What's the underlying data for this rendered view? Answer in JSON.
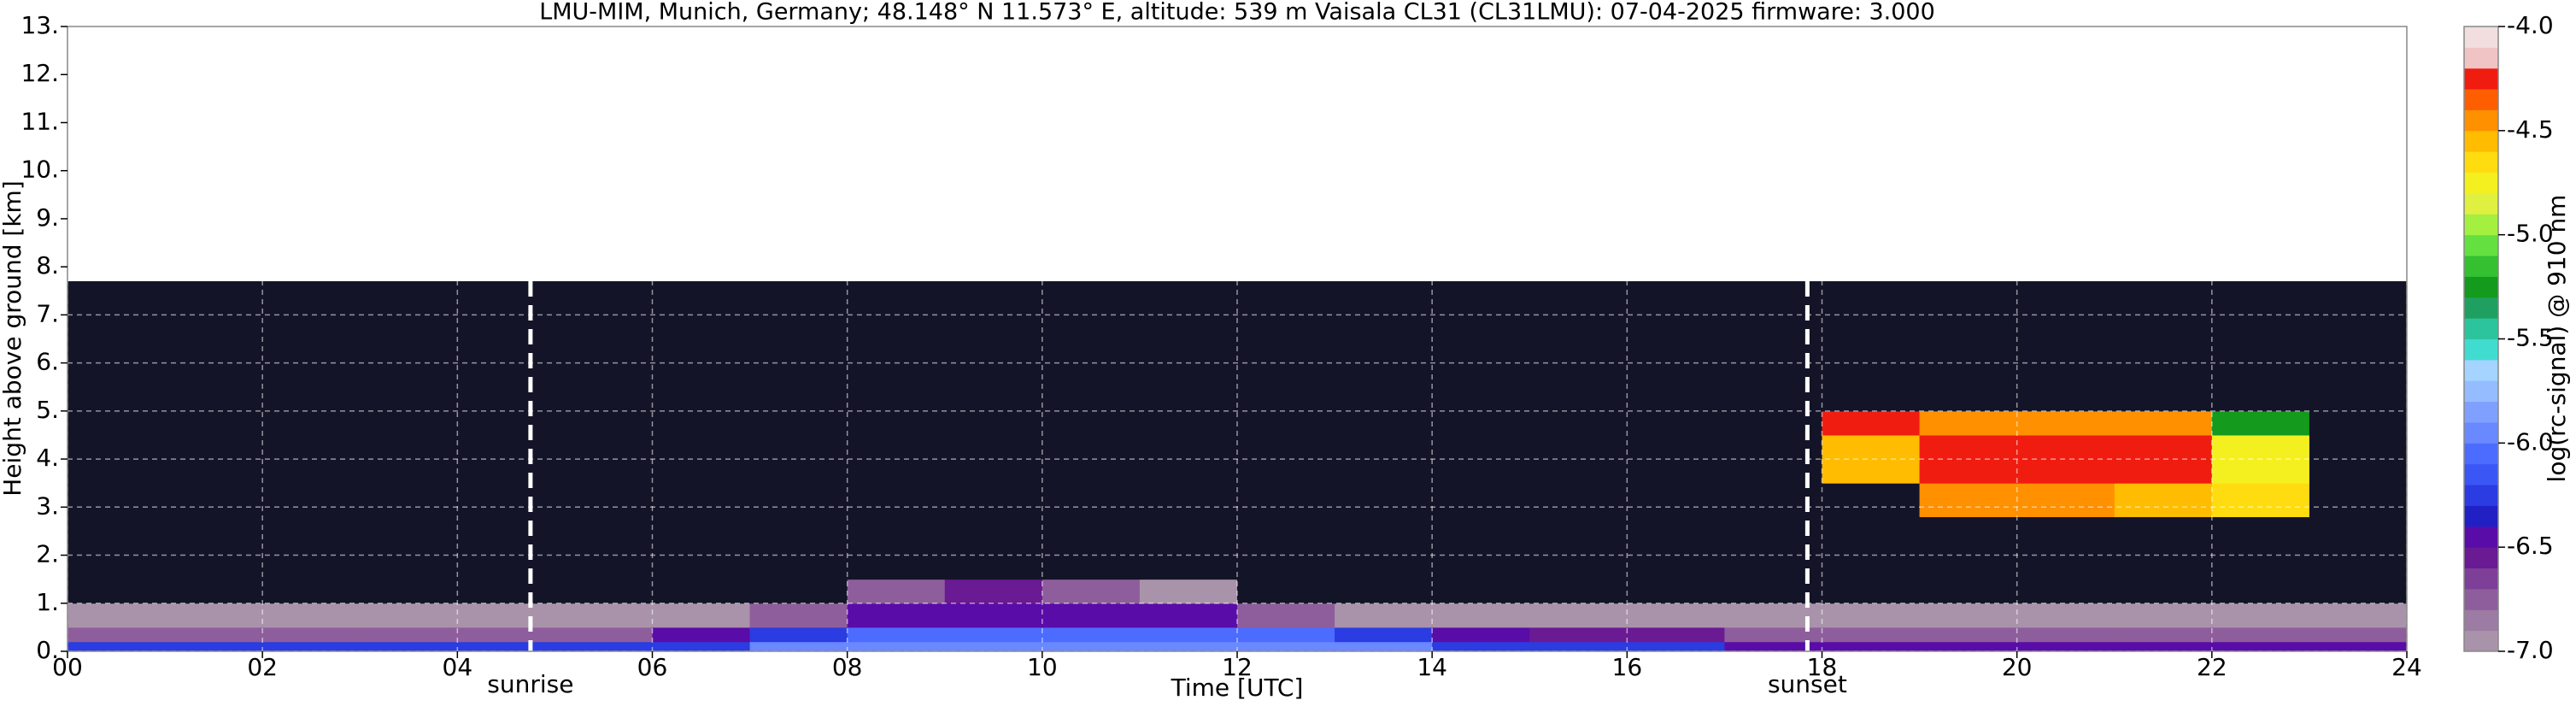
{
  "chart_data": {
    "type": "heatmap",
    "title": "LMU-MIM, Munich, Germany; 48.148° N 11.573° E, altitude: 539 m    Vaisala CL31 (CL31LMU): 07-04-2025    firmware: 3.000",
    "xlabel": "Time [UTC]",
    "ylabel": "Height above ground [km]",
    "colorbar_label": "log(rc-signal) @ 910 nm",
    "xlim": [
      0,
      24
    ],
    "xticks": [
      {
        "value": 0,
        "label": "00"
      },
      {
        "value": 2,
        "label": "02"
      },
      {
        "value": 4,
        "label": "04"
      },
      {
        "value": 6,
        "label": "06"
      },
      {
        "value": 8,
        "label": "08"
      },
      {
        "value": 10,
        "label": "10"
      },
      {
        "value": 12,
        "label": "12"
      },
      {
        "value": 14,
        "label": "14"
      },
      {
        "value": 16,
        "label": "16"
      },
      {
        "value": 18,
        "label": "18"
      },
      {
        "value": 20,
        "label": "20"
      },
      {
        "value": 22,
        "label": "22"
      },
      {
        "value": 24,
        "label": "24"
      }
    ],
    "ylim": [
      0,
      13
    ],
    "yticks": [
      {
        "value": 0,
        "label": "0."
      },
      {
        "value": 1,
        "label": "1."
      },
      {
        "value": 2,
        "label": "2."
      },
      {
        "value": 3,
        "label": "3."
      },
      {
        "value": 4,
        "label": "4."
      },
      {
        "value": 5,
        "label": "5."
      },
      {
        "value": 6,
        "label": "6."
      },
      {
        "value": 7,
        "label": "7."
      },
      {
        "value": 8,
        "label": "8."
      },
      {
        "value": 9,
        "label": "9."
      },
      {
        "value": 10,
        "label": "10."
      },
      {
        "value": 11,
        "label": "11."
      },
      {
        "value": 12,
        "label": "12."
      },
      {
        "value": 13,
        "label": "13."
      }
    ],
    "clim": [
      -7,
      -4
    ],
    "cticks": [
      {
        "value": -7,
        "label": "-7.0"
      },
      -6.5,
      {
        "value": -6,
        "label": "-6.0"
      },
      -5.5,
      {
        "value": -5,
        "label": "-5.0"
      },
      -4.5,
      {
        "value": -4,
        "label": "-4.0"
      }
    ],
    "colormap": [
      "#a993aa",
      "#9c7ca2",
      "#8e5e9c",
      "#7e3f98",
      "#6a1a92",
      "#5a0ca8",
      "#2020c4",
      "#2a3ce2",
      "#3a56f4",
      "#4c6cff",
      "#6a88ff",
      "#80a0ff",
      "#94bcff",
      "#a4d4ff",
      "#40dcd0",
      "#2cc49c",
      "#20a060",
      "#149a1c",
      "#34c030",
      "#64e040",
      "#a4f040",
      "#e0f040",
      "#f4f020",
      "#ffdc10",
      "#ffbc00",
      "#ff9000",
      "#ff5e00",
      "#f01c10",
      "#f0c4c4",
      "#f2dede"
    ],
    "under_color": "#141428",
    "grid": true,
    "xbins": [
      0,
      1,
      2,
      3,
      4,
      5,
      6,
      7,
      8,
      9,
      10,
      11,
      12,
      13,
      14,
      15,
      16,
      17,
      18,
      19,
      20,
      21,
      22,
      23,
      24
    ],
    "ybins": [
      0,
      0.2,
      0.5,
      1,
      1.5,
      2.8,
      3.5,
      4.5,
      5,
      7.7
    ],
    "values": [
      [
        -6.3,
        -6.3,
        -6.3,
        -6.3,
        -6.3,
        -6.3,
        -6.2,
        -6.0,
        -6.0,
        -6.0,
        -6.0,
        -6.0,
        -6.0,
        -6.0,
        -6.2,
        -6.2,
        -6.2,
        -6.4,
        -6.4,
        -6.4,
        -6.4,
        -6.4,
        -6.4,
        -6.4
      ],
      [
        -6.7,
        -6.7,
        -6.7,
        -6.7,
        -6.7,
        -6.7,
        -6.5,
        -6.3,
        -6.1,
        -6.1,
        -6.1,
        -6.1,
        -6.1,
        -6.2,
        -6.5,
        -6.6,
        -6.6,
        -6.7,
        -6.7,
        -6.7,
        -6.7,
        -6.7,
        -6.7,
        -6.7
      ],
      [
        -6.9,
        -6.9,
        -6.9,
        -6.9,
        -6.9,
        -6.9,
        -6.9,
        -6.7,
        -6.5,
        -6.4,
        -6.4,
        -6.5,
        -6.7,
        -6.9,
        -6.9,
        -6.9,
        -6.9,
        -6.9,
        -6.9,
        -6.9,
        -6.9,
        -6.9,
        -6.9,
        -6.9
      ],
      [
        -7.2,
        -7.2,
        -7.2,
        -7.2,
        -7.2,
        -7.2,
        -7.2,
        -7.2,
        -6.8,
        -6.6,
        -6.7,
        -6.9,
        -7.2,
        -7.2,
        -7.2,
        -7.2,
        -7.2,
        -7.2,
        -7.2,
        -7.2,
        -7.2,
        -7.2,
        -7.2,
        -7.2
      ],
      [
        -7.2,
        -7.2,
        -7.2,
        -7.2,
        -7.2,
        -7.2,
        -7.2,
        -7.2,
        -7.2,
        -7.2,
        -7.2,
        -7.2,
        -7.2,
        -7.2,
        -7.2,
        -7.2,
        -7.2,
        -7.2,
        -7.2,
        -7.2,
        -7.2,
        -7.2,
        -7.2,
        -7.2
      ],
      [
        -7.2,
        -7.2,
        -7.2,
        -7.2,
        -7.2,
        -7.2,
        -7.2,
        -7.2,
        -7.2,
        -7.2,
        -7.2,
        -7.2,
        -7.2,
        -7.2,
        -7.2,
        -7.2,
        -7.2,
        -7.2,
        -7.2,
        -4.4,
        -4.4,
        -4.6,
        -4.7,
        -7.2
      ],
      [
        -7.2,
        -7.2,
        -7.2,
        -7.2,
        -7.2,
        -7.2,
        -7.2,
        -7.2,
        -7.2,
        -7.2,
        -7.2,
        -7.2,
        -7.2,
        -7.2,
        -7.2,
        -7.2,
        -7.2,
        -7.2,
        -4.6,
        -4.3,
        -4.3,
        -4.3,
        -4.8,
        -7.2
      ],
      [
        -7.2,
        -7.2,
        -7.2,
        -7.2,
        -7.2,
        -7.2,
        -7.2,
        -7.2,
        -7.2,
        -7.2,
        -7.2,
        -7.2,
        -7.2,
        -7.2,
        -7.2,
        -7.2,
        -7.2,
        -7.2,
        -4.3,
        -4.4,
        -4.4,
        -4.4,
        -5.3,
        -7.2
      ],
      [
        -7.2,
        -7.2,
        -7.2,
        -7.2,
        -7.2,
        -7.2,
        -7.2,
        -7.2,
        -7.2,
        -7.2,
        -7.2,
        -7.2,
        -7.2,
        -7.2,
        -7.2,
        -7.2,
        -7.2,
        -7.2,
        -7.2,
        -7.2,
        -7.2,
        -7.2,
        -7.2,
        -7.2
      ]
    ],
    "annotations": [
      {
        "text": "sunrise",
        "x": 4.75
      },
      {
        "text": "sunset",
        "x": 17.85
      }
    ]
  }
}
